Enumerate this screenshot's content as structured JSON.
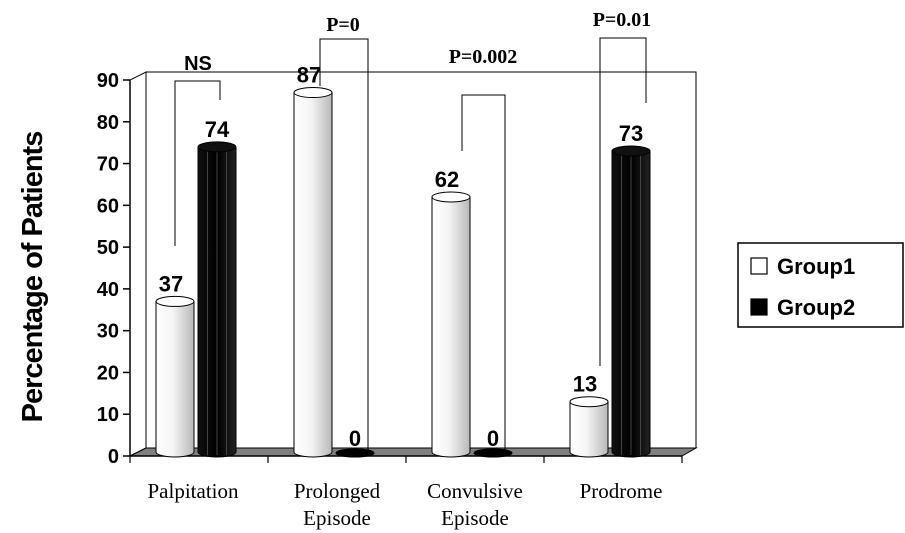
{
  "chart_data": {
    "type": "bar",
    "title": "",
    "ylabel": "Percentage of Patients",
    "xlabel": "",
    "ylim": [
      0,
      90
    ],
    "yticks": [
      0,
      10,
      20,
      30,
      40,
      50,
      60,
      70,
      80,
      90
    ],
    "categories": [
      [
        "Palpitation"
      ],
      [
        "Prolonged",
        "Episode"
      ],
      [
        "Convulsive",
        "Episode"
      ],
      [
        "Prodrome"
      ]
    ],
    "series": [
      {
        "name": "Group1",
        "values": [
          37,
          87,
          62,
          13
        ],
        "color": "#f2f2f2"
      },
      {
        "name": "Group2",
        "values": [
          74,
          0,
          0,
          73
        ],
        "color": "#000000"
      }
    ],
    "annotations": [
      "NS",
      "P=0",
      "P=0.002",
      "P=0.01"
    ],
    "legend_position": "right",
    "grid": false
  }
}
